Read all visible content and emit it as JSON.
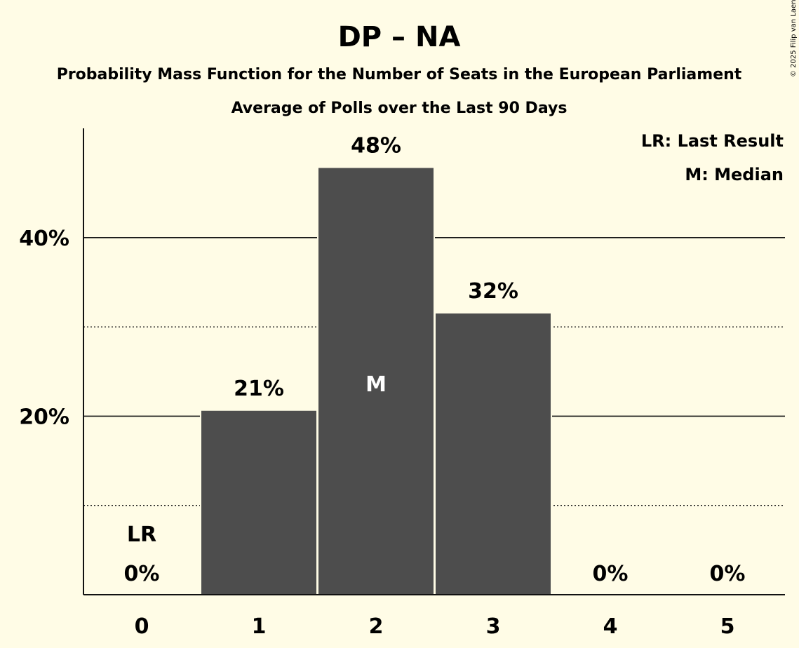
{
  "title": "DP – NA",
  "subtitle1": "Probability Mass Function for the Number of Seats in the European Parliament",
  "subtitle2": "Average of Polls over the Last 90 Days",
  "copyright": "© 2025 Filip van Laenen",
  "legend": {
    "lr": "LR: Last Result",
    "median": "M: Median"
  },
  "colors": {
    "background": "#fffce6",
    "bar": "#4d4d4d",
    "text": "#111111"
  },
  "chart_data": {
    "type": "bar",
    "categories": [
      "0",
      "1",
      "2",
      "3",
      "4",
      "5"
    ],
    "values": [
      0,
      20.6,
      47.8,
      31.5,
      0,
      0
    ],
    "data_labels": [
      "0%",
      "21%",
      "48%",
      "32%",
      "0%",
      "0%"
    ],
    "last_result_index": 0,
    "last_result_label": "LR",
    "median_index": 2,
    "median_label": "M",
    "ylim": [
      0,
      52
    ],
    "yticks": [
      {
        "value": 20,
        "label": "20%",
        "style": "solid"
      },
      {
        "value": 40,
        "label": "40%",
        "style": "solid"
      }
    ],
    "minor_gridlines": [
      10,
      30
    ],
    "legend_position": "top-right"
  }
}
